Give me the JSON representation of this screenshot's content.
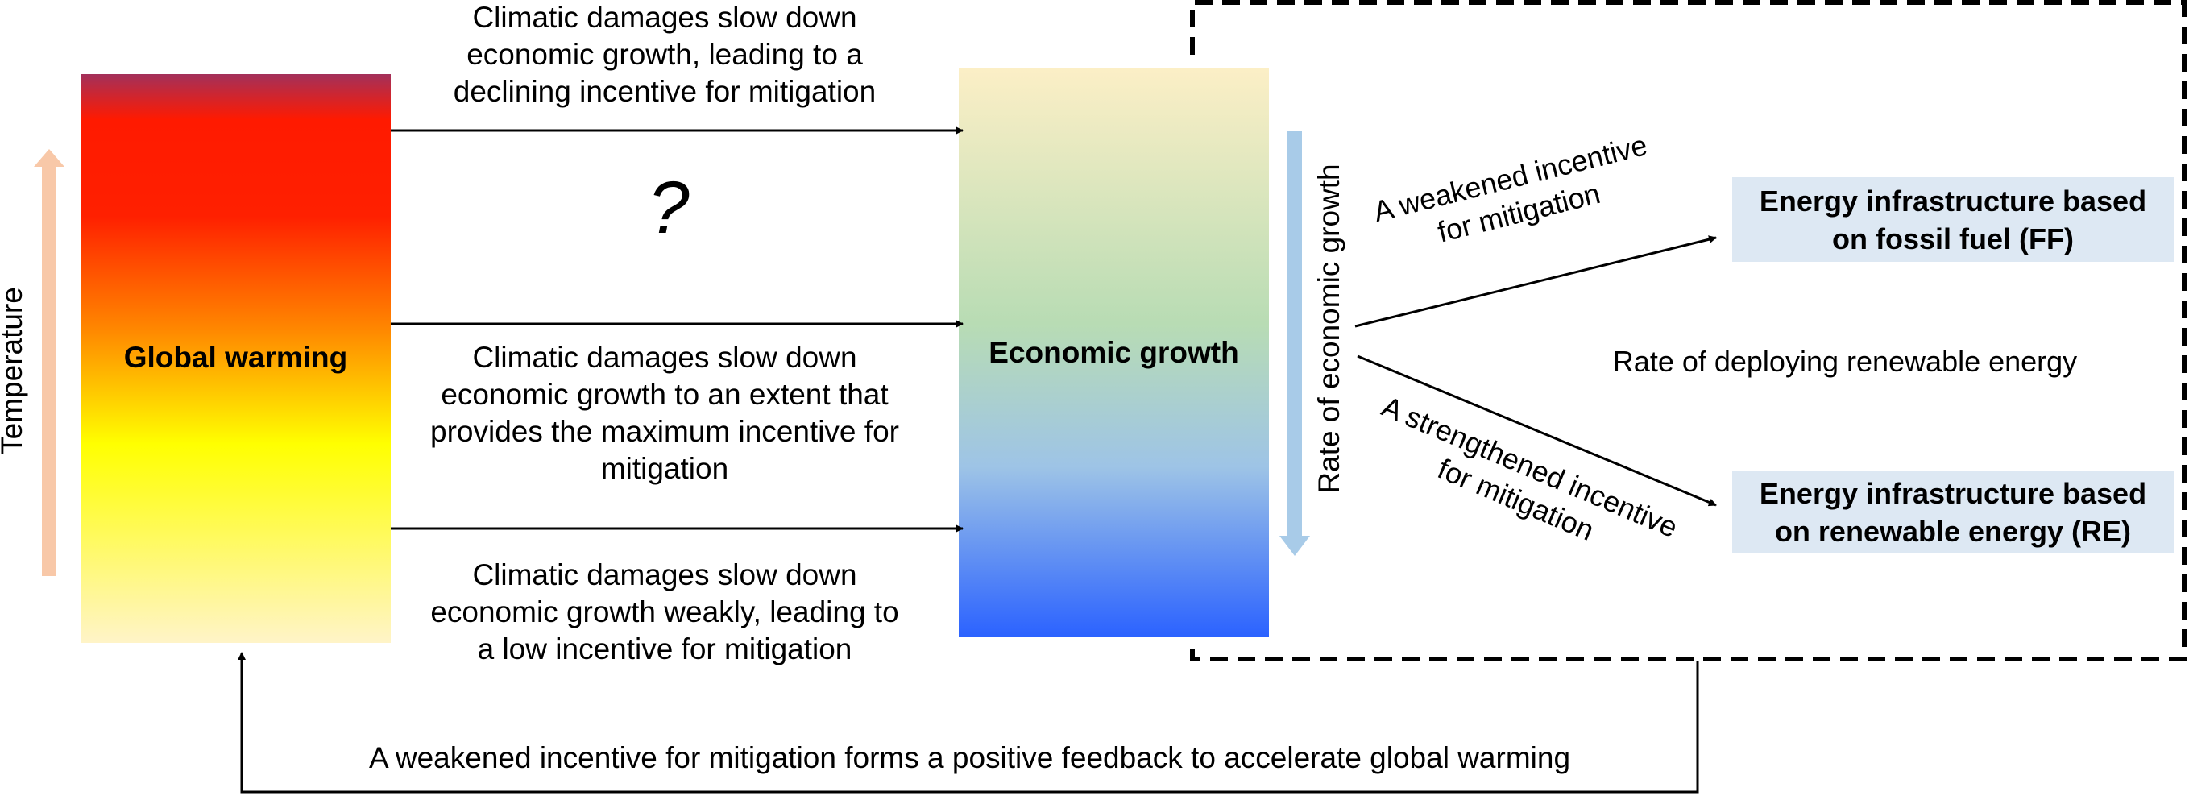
{
  "left_box": {
    "label": "Global warming",
    "gradient_colors": [
      "#a3305a",
      "#ff1a00",
      "#ff8800",
      "#ffff00",
      "#fff4c8"
    ]
  },
  "temperature_axis": {
    "label": "Temperature",
    "color": "#f8c8a8"
  },
  "center_box": {
    "label": "Economic growth",
    "gradient_colors": [
      "#fcefc6",
      "#b8dcb4",
      "#9ec4e6",
      "#2b62ff"
    ]
  },
  "growth_axis": {
    "label": "Rate of economic growth",
    "color": "#a8cbe8"
  },
  "pathways": {
    "top": [
      "Climatic damages slow down",
      "economic growth, leading to a",
      "declining incentive for mitigation"
    ],
    "question_mark": "?",
    "middle": [
      "Climatic damages slow down",
      "economic growth to an extent that",
      "provides the maximum incentive for",
      "mitigation"
    ],
    "bottom": [
      "Climatic damages slow down",
      "economic growth weakly, leading to",
      "a low incentive for mitigation"
    ]
  },
  "right_panel": {
    "weakened_label": [
      "A weakened incentive",
      "for mitigation"
    ],
    "strengthened_label": [
      "A strengthened incentive",
      "for mitigation"
    ],
    "ff_box": [
      "Energy infrastructure based",
      "on fossil fuel (FF)"
    ],
    "re_box": [
      "Energy infrastructure based",
      "on renewable energy (RE)"
    ],
    "middle_text": "Rate of deploying renewable energy",
    "box_color": "#dde8f3"
  },
  "feedback": {
    "text": "A weakened incentive for mitigation forms a positive feedback to accelerate global warming"
  }
}
